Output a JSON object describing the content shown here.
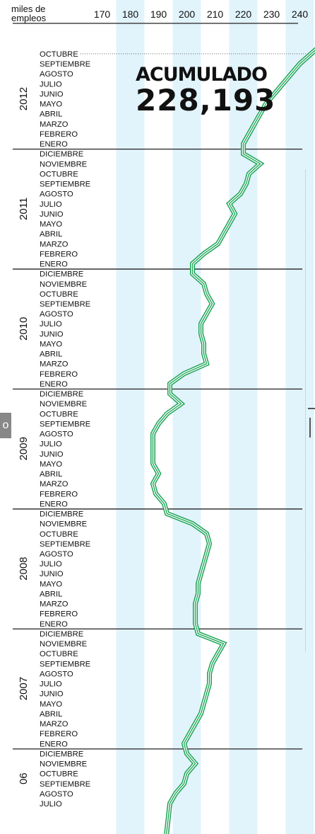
{
  "header": {
    "unit_line1": "miles de",
    "unit_line2": "empleos"
  },
  "total": {
    "label": "ACUMULADO",
    "value": "228,193"
  },
  "colors": {
    "band": "#e1f3fb",
    "line": "#1ba456",
    "text": "#111111",
    "divider": "#222222"
  },
  "chart_data": {
    "type": "line",
    "x_axis": {
      "ticks": [
        170,
        180,
        190,
        200,
        210,
        220,
        230,
        240
      ],
      "range": [
        165,
        245
      ],
      "position": "top"
    },
    "y_axis": {
      "orientation": "reversed, latest month at top"
    },
    "years": [
      {
        "year": "2012",
        "months": [
          "OCTUBRE",
          "SEPTIEMBRE",
          "AGOSTO",
          "JULIO",
          "JUNIO",
          "MAYO",
          "ABRIL",
          "MARZO",
          "FEBRERO",
          "ENERO"
        ]
      },
      {
        "year": "2011",
        "months": [
          "DICIEMBRE",
          "NOVIEMBRE",
          "OCTUBRE",
          "SEPTIEMBRE",
          "AGOSTO",
          "JULIO",
          "JUNIO",
          "MAYO",
          "ABRIL",
          "MARZO",
          "FEBRERO",
          "ENERO"
        ]
      },
      {
        "year": "2010",
        "months": [
          "DICIEMBRE",
          "NOVIEMBRE",
          "OCTUBRE",
          "SEPTIEMBRE",
          "AGOSTO",
          "JULIO",
          "JUNIO",
          "MAYO",
          "ABRIL",
          "MARZO",
          "FEBRERO",
          "ENERO"
        ]
      },
      {
        "year": "2009",
        "months": [
          "DICIEMBRE",
          "NOVIEMBRE",
          "OCTUBRE",
          "SEPTIEMBRE",
          "AGOSTO",
          "JULIO",
          "JUNIO",
          "MAYO",
          "ABRIL",
          "MARZO",
          "FEBRERO",
          "ENERO"
        ]
      },
      {
        "year": "2008",
        "months": [
          "DICIEMBRE",
          "NOVIEMBRE",
          "OCTUBRE",
          "SEPTIEMBRE",
          "AGOSTO",
          "JULIO",
          "JUNIO",
          "MAYO",
          "ABRIL",
          "MARZO",
          "FEBRERO",
          "ENERO"
        ]
      },
      {
        "year": "2007",
        "months": [
          "DICIEMBRE",
          "NOVIEMBRE",
          "OCTUBRE",
          "SEPTIEMBRE",
          "AGOSTO",
          "JULIO",
          "JUNIO",
          "MAYO",
          "ABRIL",
          "MARZO",
          "FEBRERO",
          "ENERO"
        ]
      },
      {
        "year": "06",
        "months": [
          "DICIEMBRE",
          "NOVIEMBRE",
          "OCTUBRE",
          "SEPTIEMBRE",
          "AGOSTO",
          "JULIO"
        ]
      }
    ],
    "series": [
      {
        "values": [
          244,
          240,
          237,
          234,
          231,
          228,
          226,
          224,
          222,
          220,
          220,
          226,
          222,
          221,
          219,
          215,
          217,
          215,
          213,
          211,
          206,
          202,
          202,
          206,
          207,
          209,
          207,
          205,
          205,
          206,
          206,
          207,
          199,
          194,
          194,
          198,
          193,
          190,
          188,
          188,
          188,
          188,
          190,
          188,
          189,
          192,
          193,
          202,
          207,
          208,
          207,
          206,
          205,
          204,
          204,
          203,
          203,
          203,
          204,
          213,
          211,
          209,
          208,
          208,
          207,
          206,
          205,
          203,
          201,
          199,
          200,
          203,
          200,
          199,
          196,
          194
        ]
      }
    ]
  }
}
